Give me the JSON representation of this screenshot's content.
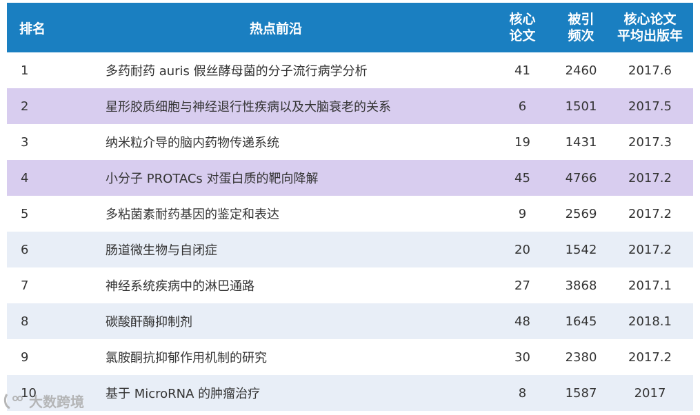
{
  "header": {
    "rank": "排名",
    "topic": "热点前沿",
    "core_line1": "核心",
    "core_line2": "论文",
    "cite_line1": "被引",
    "cite_line2": "频次",
    "year_line1": "核心论文",
    "year_line2": "平均出版年"
  },
  "rows": [
    {
      "rank": "1",
      "topic": "多药耐药 auris 假丝酵母菌的分子流行病学分析",
      "core": "41",
      "cites": "2460",
      "year": "2017.6"
    },
    {
      "rank": "2",
      "topic": "星形胶质细胞与神经退行性疾病以及大脑衰老的关系",
      "core": "6",
      "cites": "1501",
      "year": "2017.5"
    },
    {
      "rank": "3",
      "topic": "纳米粒介导的脑内药物传递系统",
      "core": "19",
      "cites": "1431",
      "year": "2017.3"
    },
    {
      "rank": "4",
      "topic": "小分子 PROTACs 对蛋白质的靶向降解",
      "core": "45",
      "cites": "4766",
      "year": "2017.2"
    },
    {
      "rank": "5",
      "topic": "多粘菌素耐药基因的鉴定和表达",
      "core": "9",
      "cites": "2569",
      "year": "2017.2"
    },
    {
      "rank": "6",
      "topic": "肠道微生物与自闭症",
      "core": "20",
      "cites": "1542",
      "year": "2017.2"
    },
    {
      "rank": "7",
      "topic": "神经系统疾病中的淋巴通路",
      "core": "27",
      "cites": "3868",
      "year": "2017.1"
    },
    {
      "rank": "8",
      "topic": "碳酸酐酶抑制剂",
      "core": "48",
      "cites": "1645",
      "year": "2018.1"
    },
    {
      "rank": "9",
      "topic": "氯胺酮抗抑郁作用机制的研究",
      "core": "30",
      "cites": "2380",
      "year": "2017.2"
    },
    {
      "rank": "10",
      "topic": "基于 MicroRNA 的肿瘤治疗",
      "core": "8",
      "cites": "1587",
      "year": "2017"
    }
  ],
  "watermark": {
    "text": "大数跨境"
  },
  "colors": {
    "header_bg": "#1a7fc1",
    "row_purple": "#d8cdef",
    "row_lightblue": "#e8eef7"
  }
}
